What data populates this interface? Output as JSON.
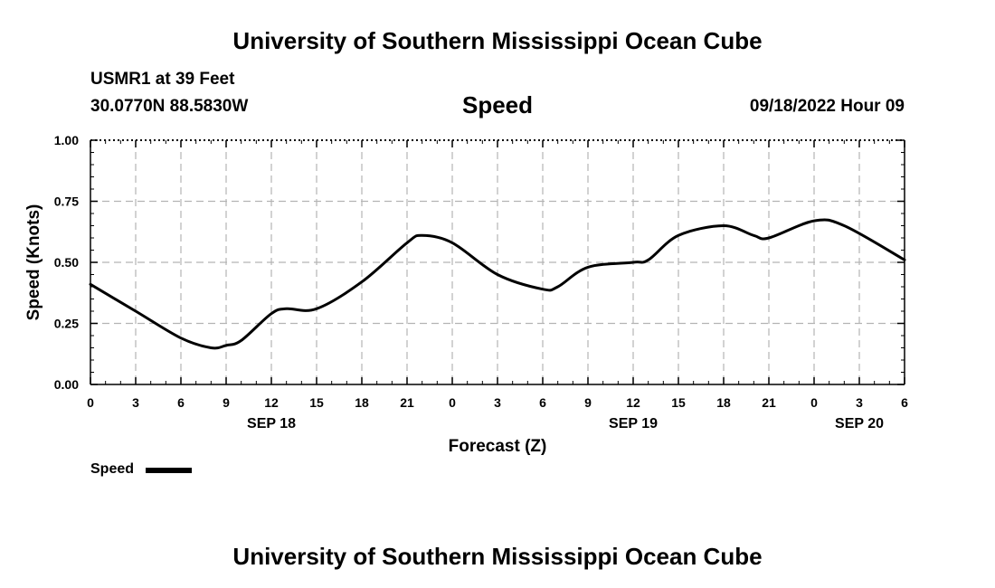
{
  "header": {
    "title": "University of Southern Mississippi Ocean Cube",
    "station": "USMR1 at 39 Feet",
    "location": "30.0770N  88.5830W",
    "variable": "Speed",
    "timestamp": "09/18/2022 Hour 09"
  },
  "footer": {
    "title": "University of Southern Mississippi Ocean Cube"
  },
  "legend": {
    "label": "Speed"
  },
  "colors": {
    "line": "#000000",
    "grid": "#b4b4b4"
  },
  "chart_data": {
    "type": "line",
    "title": "Speed",
    "xlabel": "Forecast (Z)",
    "ylabel": "Speed (Knots)",
    "ylim": [
      0,
      1
    ],
    "xlim": [
      0,
      54
    ],
    "x_unit": "hours since 2022-09-18 00Z",
    "grid": true,
    "legend_position": "bottom-left",
    "yticks": [
      "0.00",
      "0.25",
      "0.50",
      "0.75",
      "1.00"
    ],
    "ytick_values": [
      0,
      0.25,
      0.5,
      0.75,
      1
    ],
    "xticks": [
      0,
      3,
      6,
      9,
      12,
      15,
      18,
      21,
      24,
      27,
      30,
      33,
      36,
      39,
      42,
      45,
      48,
      51,
      54
    ],
    "xtick_labels": [
      "0",
      "3",
      "6",
      "9",
      "12",
      "15",
      "18",
      "21",
      "0",
      "3",
      "6",
      "9",
      "12",
      "15",
      "18",
      "21",
      "0",
      "3",
      "6"
    ],
    "date_labels": [
      {
        "x": 12,
        "label": "SEP 18"
      },
      {
        "x": 36,
        "label": "SEP 19"
      },
      {
        "x": 51,
        "label": "SEP 20"
      }
    ],
    "series": [
      {
        "name": "Speed",
        "x": [
          0,
          3,
          6,
          8,
          9,
          10,
          12,
          13,
          15,
          18,
          21,
          22,
          24,
          27,
          30,
          31,
          33,
          36,
          37,
          39,
          42,
          44,
          45,
          48,
          50,
          54
        ],
        "values": [
          0.41,
          0.3,
          0.19,
          0.15,
          0.16,
          0.18,
          0.29,
          0.31,
          0.31,
          0.42,
          0.58,
          0.61,
          0.58,
          0.45,
          0.39,
          0.4,
          0.48,
          0.5,
          0.51,
          0.61,
          0.65,
          0.61,
          0.6,
          0.67,
          0.65,
          0.51
        ]
      }
    ]
  }
}
